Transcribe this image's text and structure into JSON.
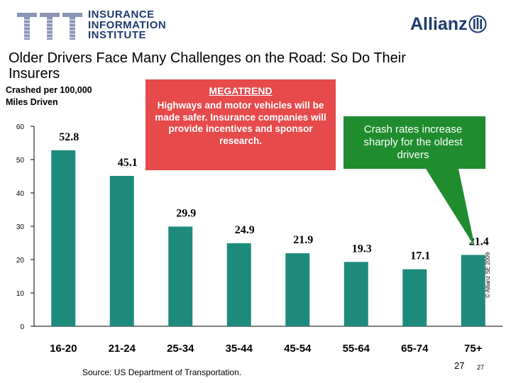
{
  "header": {
    "iii_logo_text": [
      "INSURANCE",
      "INFORMATION",
      "INSTITUTE"
    ],
    "allianz_logo_text": "Allianz"
  },
  "slide": {
    "title": "Older Drivers Face Many Challenges on the Road: So Do Their Insurers",
    "y_axis_label_line1": "Crashed per 100,000",
    "y_axis_label_line2": "Miles Driven",
    "megatrend_heading": "MEGATREND",
    "megatrend_body": "Highways and motor vehicles will be made safer. Insurance companies will provide incentives and sponsor research.",
    "callout_text": "Crash rates increase sharply for the oldest drivers",
    "source": "Source: US Department of Transportation.",
    "page_number": "27",
    "page_number_small": "27",
    "copyright": "© Allianz SE 2009"
  },
  "colors": {
    "bar": "#1d8a7c",
    "navy": "#1f3a6e",
    "megatrend_box": "#e64a4a",
    "callout": "#1f8c2e"
  },
  "chart_data": {
    "type": "bar",
    "categories": [
      "16-20",
      "21-24",
      "25-34",
      "35-44",
      "45-54",
      "55-64",
      "65-74",
      "75+"
    ],
    "values": [
      52.8,
      45.1,
      29.9,
      24.9,
      21.9,
      19.3,
      17.1,
      21.4
    ],
    "data_labels": [
      "52.8",
      "45.1",
      "29.9",
      "24.9",
      "21.9",
      "19.3",
      "17.1",
      "21.4"
    ],
    "ylim": [
      0,
      60
    ],
    "yticks": [
      0,
      10,
      20,
      30,
      40,
      50,
      60
    ],
    "ylabel": "Crashed per 100,000 Miles Driven",
    "grid": false
  }
}
